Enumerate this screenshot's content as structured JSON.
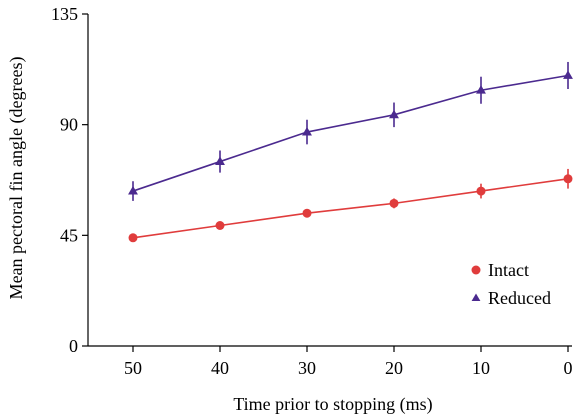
{
  "chart_data": {
    "type": "line",
    "xlabel": "Time prior to stopping (ms)",
    "ylabel": "Mean pectoral fin angle (degrees)",
    "x": [
      50,
      40,
      30,
      20,
      10,
      0
    ],
    "x_tick_labels": [
      "50",
      "40",
      "30",
      "20",
      "10",
      "0"
    ],
    "x_reversed": true,
    "ylim": [
      0,
      135
    ],
    "y_ticks": [
      0,
      45,
      90,
      135
    ],
    "y_tick_labels": [
      "0",
      "45",
      "90",
      "135"
    ],
    "grid": false,
    "legend_position": "bottom-right",
    "series": [
      {
        "name": "Intact",
        "color": "#e03c3c",
        "marker": "circle",
        "values": [
          44,
          49,
          54,
          58,
          63,
          68
        ],
        "errors": [
          1.5,
          1.5,
          1.5,
          2,
          3,
          4
        ]
      },
      {
        "name": "Reduced",
        "color": "#4b2a8f",
        "marker": "triangle",
        "values": [
          63,
          75,
          87,
          94,
          104,
          110
        ],
        "errors": [
          4,
          4.5,
          5,
          5,
          5.5,
          5.5
        ]
      }
    ]
  }
}
